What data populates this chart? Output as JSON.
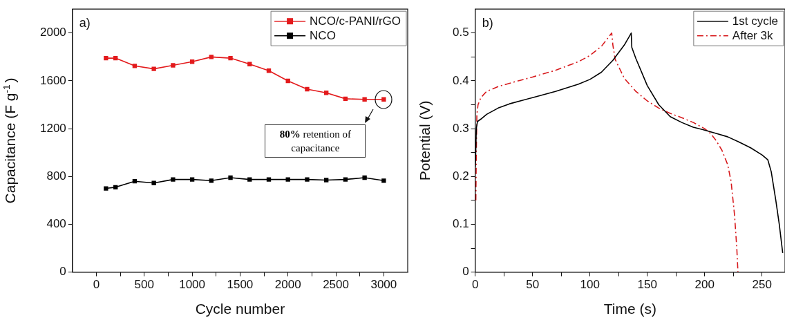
{
  "chart_data": [
    {
      "type": "line",
      "title": "a)",
      "xlabel": "Cycle number",
      "ylabel": "Capacitance (F g$^{-1}$)",
      "xlim": [
        -250,
        3250
      ],
      "ylim": [
        0,
        2200
      ],
      "xticks": [
        0,
        {
          "value": 250,
          "label": null
        },
        500,
        {
          "value": 750,
          "label": null
        },
        1000,
        {
          "value": 1250,
          "label": null
        },
        1500,
        {
          "value": 1750,
          "label": null
        },
        2000,
        {
          "value": 2250,
          "label": null
        },
        2500,
        {
          "value": 2750,
          "label": null
        },
        3000
      ],
      "yticks": [
        0,
        400,
        800,
        1200,
        1600,
        2000
      ],
      "x": [
        100,
        200,
        400,
        600,
        800,
        1000,
        1200,
        1400,
        1600,
        1800,
        2000,
        2200,
        2400,
        2600,
        2800,
        3000
      ],
      "series": [
        {
          "name": "NCO/c-PANI/rGO",
          "color": "#e31a1c",
          "values": [
            1790,
            1790,
            1725,
            1700,
            1730,
            1760,
            1800,
            1790,
            1740,
            1685,
            1600,
            1530,
            1500,
            1450,
            1445,
            1445
          ]
        },
        {
          "name": "NCO",
          "color": "#000000",
          "values": [
            700,
            710,
            760,
            745,
            775,
            775,
            765,
            790,
            775,
            775,
            775,
            775,
            770,
            775,
            790,
            765
          ]
        }
      ],
      "marker": "square",
      "legend": "top right",
      "annotations": [
        "80% retention of capacitance"
      ]
    },
    {
      "type": "line",
      "title": "b)",
      "xlabel": "Time (s)",
      "ylabel": "Potential (V)",
      "xlim": [
        0,
        270
      ],
      "ylim": [
        0,
        0.55
      ],
      "xticks": [
        0,
        {
          "value": 25,
          "label": null
        },
        50,
        {
          "value": 75,
          "label": null
        },
        100,
        {
          "value": 125,
          "label": null
        },
        150,
        {
          "value": 175,
          "label": null
        },
        200,
        {
          "value": 225,
          "label": null
        },
        250
      ],
      "yticks": [
        0.0,
        {
          "value": 0.05,
          "label": null
        },
        0.1,
        {
          "value": 0.15,
          "label": null
        },
        0.2,
        {
          "value": 0.25,
          "label": null
        },
        0.3,
        {
          "value": 0.35,
          "label": null
        },
        0.4,
        {
          "value": 0.45,
          "label": null
        },
        0.5
      ],
      "series": [
        {
          "name": "1st cycle",
          "color": "#000000",
          "line_style": "solid",
          "x": [
            0,
            0.5,
            1,
            2,
            5,
            10,
            20,
            30,
            50,
            70,
            90,
            100,
            110,
            120,
            130,
            136,
            136.5,
            140,
            150,
            160,
            170,
            180,
            190,
            200,
            210,
            220,
            230,
            240,
            250,
            255,
            258,
            262,
            265,
            268
          ],
          "values": [
            0.22,
            0.25,
            0.3,
            0.315,
            0.32,
            0.33,
            0.343,
            0.352,
            0.365,
            0.378,
            0.393,
            0.403,
            0.418,
            0.443,
            0.475,
            0.5,
            0.47,
            0.447,
            0.39,
            0.35,
            0.325,
            0.313,
            0.303,
            0.297,
            0.29,
            0.283,
            0.272,
            0.26,
            0.245,
            0.235,
            0.21,
            0.15,
            0.1,
            0.04
          ]
        },
        {
          "name": "After 3k",
          "color": "#d7191c",
          "line_style": "dashed",
          "x": [
            0.6,
            1,
            1.5,
            2.5,
            5,
            10,
            20,
            30,
            50,
            70,
            90,
            100,
            110,
            119,
            120,
            122,
            130,
            140,
            150,
            160,
            170,
            180,
            190,
            200,
            205,
            210,
            215,
            220,
            223,
            226,
            228,
            229
          ],
          "values": [
            0.15,
            0.25,
            0.33,
            0.35,
            0.365,
            0.378,
            0.388,
            0.395,
            0.408,
            0.422,
            0.44,
            0.453,
            0.472,
            0.5,
            0.475,
            0.445,
            0.405,
            0.378,
            0.358,
            0.343,
            0.332,
            0.323,
            0.313,
            0.3,
            0.29,
            0.275,
            0.255,
            0.225,
            0.19,
            0.12,
            0.05,
            0
          ]
        }
      ],
      "marker": "none",
      "legend": "top right"
    }
  ]
}
